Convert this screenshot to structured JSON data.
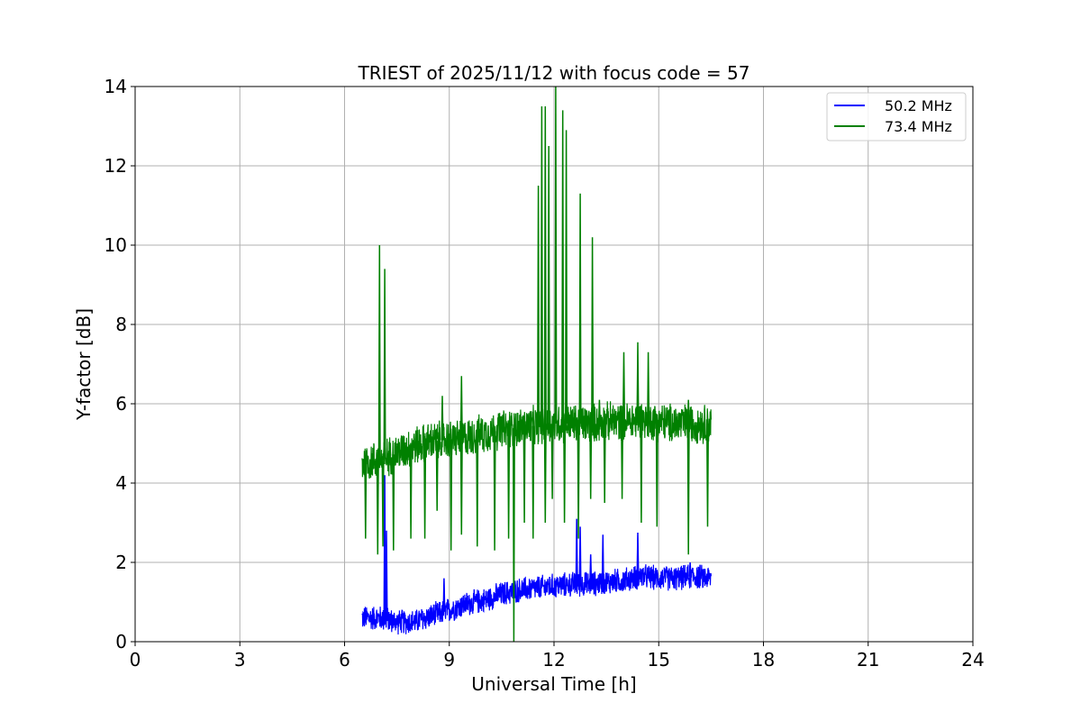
{
  "chart_data": {
    "type": "line",
    "title": "TRIEST of 2025/11/12 with focus code = 57",
    "xlabel": "Universal Time [h]",
    "ylabel": "Y-factor [dB]",
    "xlim": [
      0,
      24
    ],
    "ylim": [
      0,
      14
    ],
    "xticks": [
      0,
      3,
      6,
      9,
      12,
      15,
      18,
      21,
      24
    ],
    "yticks": [
      0,
      2,
      4,
      6,
      8,
      10,
      12,
      14
    ],
    "grid": true,
    "legend_position": "top-right",
    "series": [
      {
        "name": "50.2 MHz",
        "color": "#0000ff",
        "time_range": [
          6.5,
          16.5
        ],
        "trend": [
          [
            6.5,
            0.6
          ],
          [
            7.0,
            0.6
          ],
          [
            7.5,
            0.5
          ],
          [
            8.0,
            0.5
          ],
          [
            8.5,
            0.65
          ],
          [
            9.0,
            0.8
          ],
          [
            9.5,
            0.95
          ],
          [
            10.0,
            1.05
          ],
          [
            10.5,
            1.2
          ],
          [
            11.0,
            1.3
          ],
          [
            11.5,
            1.35
          ],
          [
            12.0,
            1.4
          ],
          [
            12.5,
            1.45
          ],
          [
            13.0,
            1.45
          ],
          [
            13.5,
            1.5
          ],
          [
            14.0,
            1.55
          ],
          [
            14.5,
            1.65
          ],
          [
            15.0,
            1.6
          ],
          [
            15.5,
            1.6
          ],
          [
            16.0,
            1.65
          ],
          [
            16.5,
            1.6
          ]
        ],
        "noise_band": 0.35,
        "spikes": [
          [
            7.15,
            4.2
          ],
          [
            7.2,
            2.8
          ],
          [
            8.85,
            1.6
          ],
          [
            12.65,
            3.1
          ],
          [
            12.75,
            2.9
          ],
          [
            13.05,
            2.2
          ],
          [
            13.4,
            2.7
          ],
          [
            14.4,
            2.75
          ],
          [
            15.9,
            2.0
          ]
        ]
      },
      {
        "name": "73.4 MHz",
        "color": "#008000",
        "time_range": [
          6.5,
          16.5
        ],
        "trend": [
          [
            6.5,
            4.5
          ],
          [
            7.0,
            4.6
          ],
          [
            7.5,
            4.75
          ],
          [
            8.0,
            4.95
          ],
          [
            8.5,
            5.05
          ],
          [
            9.0,
            5.1
          ],
          [
            9.5,
            5.15
          ],
          [
            10.0,
            5.25
          ],
          [
            10.5,
            5.35
          ],
          [
            11.0,
            5.4
          ],
          [
            11.5,
            5.45
          ],
          [
            12.0,
            5.5
          ],
          [
            12.5,
            5.5
          ],
          [
            13.0,
            5.5
          ],
          [
            13.5,
            5.55
          ],
          [
            14.0,
            5.55
          ],
          [
            14.5,
            5.6
          ],
          [
            15.0,
            5.55
          ],
          [
            15.5,
            5.5
          ],
          [
            16.0,
            5.5
          ],
          [
            16.5,
            5.5
          ]
        ],
        "noise_band": 0.55,
        "spikes": [
          [
            7.0,
            10.0
          ],
          [
            7.15,
            9.4
          ],
          [
            7.3,
            4.9
          ],
          [
            8.8,
            6.2
          ],
          [
            9.35,
            6.7
          ],
          [
            11.55,
            11.5
          ],
          [
            11.65,
            13.5
          ],
          [
            11.75,
            13.5
          ],
          [
            11.85,
            12.5
          ],
          [
            12.05,
            14.0
          ],
          [
            12.25,
            13.4
          ],
          [
            12.35,
            12.9
          ],
          [
            12.75,
            11.3
          ],
          [
            13.1,
            10.2
          ],
          [
            13.3,
            6.1
          ],
          [
            14.0,
            7.3
          ],
          [
            14.4,
            7.55
          ],
          [
            14.7,
            7.3
          ],
          [
            15.85,
            6.1
          ]
        ],
        "dips": [
          [
            6.6,
            2.6
          ],
          [
            6.95,
            2.2
          ],
          [
            7.1,
            2.4
          ],
          [
            7.4,
            2.3
          ],
          [
            7.9,
            2.6
          ],
          [
            8.3,
            2.6
          ],
          [
            8.65,
            3.3
          ],
          [
            9.05,
            2.3
          ],
          [
            9.35,
            2.7
          ],
          [
            9.8,
            2.4
          ],
          [
            10.3,
            2.3
          ],
          [
            10.7,
            2.6
          ],
          [
            10.85,
            0.0
          ],
          [
            11.15,
            3.0
          ],
          [
            11.4,
            2.6
          ],
          [
            11.75,
            3.0
          ],
          [
            11.95,
            3.6
          ],
          [
            12.3,
            3.0
          ],
          [
            12.7,
            2.6
          ],
          [
            13.05,
            3.6
          ],
          [
            13.45,
            3.5
          ],
          [
            13.95,
            3.6
          ],
          [
            14.5,
            3.0
          ],
          [
            14.95,
            2.9
          ],
          [
            15.85,
            2.2
          ],
          [
            16.4,
            2.9
          ]
        ]
      }
    ]
  }
}
